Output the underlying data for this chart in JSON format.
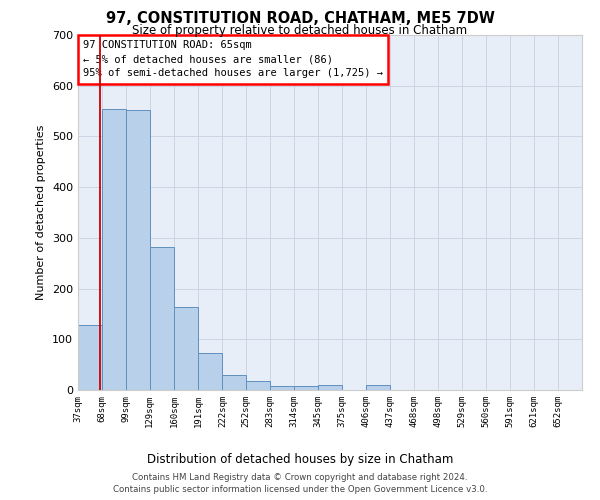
{
  "title": "97, CONSTITUTION ROAD, CHATHAM, ME5 7DW",
  "subtitle": "Size of property relative to detached houses in Chatham",
  "xlabel": "Distribution of detached houses by size in Chatham",
  "ylabel": "Number of detached properties",
  "footer_line1": "Contains HM Land Registry data © Crown copyright and database right 2024.",
  "footer_line2": "Contains public sector information licensed under the Open Government Licence v3.0.",
  "tick_labels": [
    "37sqm",
    "68sqm",
    "99sqm",
    "129sqm",
    "160sqm",
    "191sqm",
    "222sqm",
    "252sqm",
    "283sqm",
    "314sqm",
    "345sqm",
    "375sqm",
    "406sqm",
    "437sqm",
    "468sqm",
    "498sqm",
    "529sqm",
    "560sqm",
    "591sqm",
    "621sqm",
    "652sqm"
  ],
  "bar_values": [
    128,
    554,
    552,
    282,
    164,
    72,
    30,
    18,
    8,
    8,
    10,
    0,
    10,
    0,
    0,
    0,
    0,
    0,
    0,
    0,
    0
  ],
  "bin_edges": [
    37,
    68,
    99,
    129,
    160,
    191,
    222,
    252,
    283,
    314,
    345,
    375,
    406,
    437,
    468,
    498,
    529,
    560,
    591,
    621,
    652,
    683
  ],
  "bar_face_color": "#b8d0ea",
  "bar_edge_color": "#6090c0",
  "bg_color": "#e8eef8",
  "grid_color": "#c8d0e0",
  "ylim": [
    0,
    700
  ],
  "yticks": [
    0,
    100,
    200,
    300,
    400,
    500,
    600,
    700
  ],
  "vline_x": 65,
  "vline_color": "#cc0000",
  "ann_line1": "97 CONSTITUTION ROAD: 65sqm",
  "ann_line2": "← 5% of detached houses are smaller (86)",
  "ann_line3": "95% of semi-detached houses are larger (1,725) →"
}
